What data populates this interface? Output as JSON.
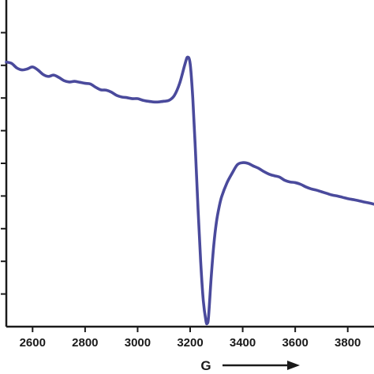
{
  "chart_data": {
    "type": "line",
    "title": "",
    "xlabel": "G",
    "ylabel": "",
    "xlim": [
      2500,
      3900
    ],
    "ylim": [
      0,
      1
    ],
    "grid": false,
    "legend": "none",
    "colors": {
      "line": "#4a4a9c",
      "axis": "#1a1a1a"
    },
    "x_ticks": [
      {
        "value": 2600,
        "label": "2600"
      },
      {
        "value": 2800,
        "label": "2800"
      },
      {
        "value": 3000,
        "label": "3000"
      },
      {
        "value": 3200,
        "label": "3200"
      },
      {
        "value": 3400,
        "label": "3400"
      },
      {
        "value": 3600,
        "label": "3600"
      },
      {
        "value": 3800,
        "label": "3800"
      }
    ],
    "y_ticks": [
      0.0,
      0.1,
      0.2,
      0.3,
      0.4,
      0.5,
      0.6,
      0.7,
      0.8,
      0.9,
      1.0
    ],
    "series": [
      {
        "color": "#4a4a9c",
        "x": [
          2500,
          2520,
          2540,
          2560,
          2580,
          2600,
          2620,
          2640,
          2660,
          2680,
          2700,
          2720,
          2740,
          2760,
          2780,
          2800,
          2820,
          2840,
          2860,
          2880,
          2900,
          2920,
          2940,
          2960,
          2980,
          3000,
          3020,
          3040,
          3060,
          3080,
          3100,
          3120,
          3140,
          3160,
          3180,
          3190,
          3200,
          3210,
          3220,
          3230,
          3240,
          3250,
          3260,
          3265,
          3270,
          3280,
          3290,
          3300,
          3310,
          3320,
          3340,
          3360,
          3380,
          3400,
          3420,
          3440,
          3460,
          3480,
          3500,
          3520,
          3540,
          3560,
          3580,
          3600,
          3620,
          3640,
          3660,
          3680,
          3700,
          3720,
          3740,
          3760,
          3780,
          3800,
          3820,
          3840,
          3860,
          3880,
          3900
        ],
        "y": [
          0.81,
          0.806,
          0.792,
          0.786,
          0.789,
          0.795,
          0.786,
          0.772,
          0.766,
          0.77,
          0.763,
          0.753,
          0.749,
          0.751,
          0.748,
          0.745,
          0.743,
          0.733,
          0.725,
          0.724,
          0.718,
          0.708,
          0.703,
          0.701,
          0.698,
          0.698,
          0.693,
          0.69,
          0.688,
          0.688,
          0.69,
          0.693,
          0.708,
          0.745,
          0.803,
          0.825,
          0.805,
          0.7,
          0.54,
          0.36,
          0.2,
          0.08,
          0.018,
          0.01,
          0.03,
          0.15,
          0.25,
          0.32,
          0.365,
          0.398,
          0.44,
          0.47,
          0.496,
          0.502,
          0.5,
          0.492,
          0.485,
          0.475,
          0.467,
          0.462,
          0.458,
          0.448,
          0.443,
          0.441,
          0.436,
          0.428,
          0.422,
          0.418,
          0.413,
          0.408,
          0.403,
          0.4,
          0.396,
          0.392,
          0.389,
          0.386,
          0.382,
          0.379,
          0.375
        ]
      }
    ]
  }
}
